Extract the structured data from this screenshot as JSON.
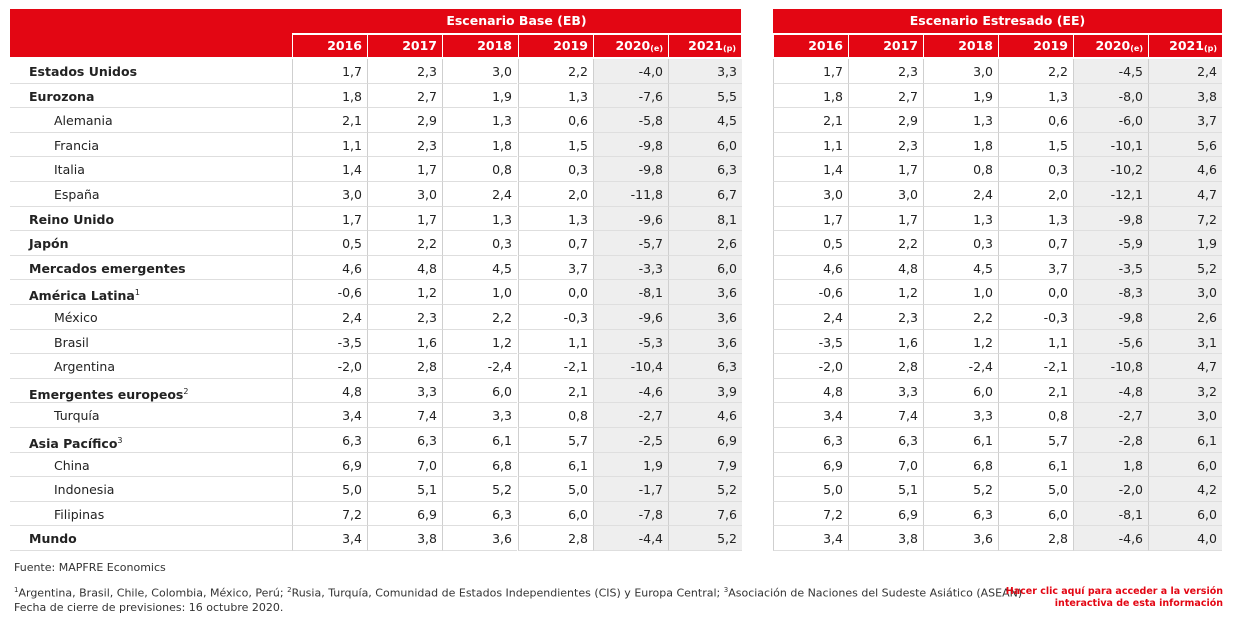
{
  "headers": {
    "base_title": "Escenario Base (EB)",
    "stress_title": "Escenario Estresado (EE)",
    "years": [
      {
        "label": "2016",
        "suffix": ""
      },
      {
        "label": "2017",
        "suffix": ""
      },
      {
        "label": "2018",
        "suffix": ""
      },
      {
        "label": "2019",
        "suffix": ""
      },
      {
        "label": "2020",
        "suffix": "(e)"
      },
      {
        "label": "2021",
        "suffix": "(p)"
      }
    ]
  },
  "rows": [
    {
      "label": "Estados Unidos",
      "note": "",
      "bold": true,
      "indent": false,
      "base": [
        "1,7",
        "2,3",
        "3,0",
        "2,2",
        "-4,0",
        "3,3"
      ],
      "stress": [
        "1,7",
        "2,3",
        "3,0",
        "2,2",
        "-4,5",
        "2,4"
      ]
    },
    {
      "label": "Eurozona",
      "note": "",
      "bold": true,
      "indent": false,
      "base": [
        "1,8",
        "2,7",
        "1,9",
        "1,3",
        "-7,6",
        "5,5"
      ],
      "stress": [
        "1,8",
        "2,7",
        "1,9",
        "1,3",
        "-8,0",
        "3,8"
      ]
    },
    {
      "label": "Alemania",
      "note": "",
      "bold": false,
      "indent": true,
      "base": [
        "2,1",
        "2,9",
        "1,3",
        "0,6",
        "-5,8",
        "4,5"
      ],
      "stress": [
        "2,1",
        "2,9",
        "1,3",
        "0,6",
        "-6,0",
        "3,7"
      ]
    },
    {
      "label": "Francia",
      "note": "",
      "bold": false,
      "indent": true,
      "base": [
        "1,1",
        "2,3",
        "1,8",
        "1,5",
        "-9,8",
        "6,0"
      ],
      "stress": [
        "1,1",
        "2,3",
        "1,8",
        "1,5",
        "-10,1",
        "5,6"
      ]
    },
    {
      "label": "Italia",
      "note": "",
      "bold": false,
      "indent": true,
      "base": [
        "1,4",
        "1,7",
        "0,8",
        "0,3",
        "-9,8",
        "6,3"
      ],
      "stress": [
        "1,4",
        "1,7",
        "0,8",
        "0,3",
        "-10,2",
        "4,6"
      ]
    },
    {
      "label": "España",
      "note": "",
      "bold": false,
      "indent": true,
      "base": [
        "3,0",
        "3,0",
        "2,4",
        "2,0",
        "-11,8",
        "6,7"
      ],
      "stress": [
        "3,0",
        "3,0",
        "2,4",
        "2,0",
        "-12,1",
        "4,7"
      ]
    },
    {
      "label": "Reino Unido",
      "note": "",
      "bold": true,
      "indent": false,
      "base": [
        "1,7",
        "1,7",
        "1,3",
        "1,3",
        "-9,6",
        "8,1"
      ],
      "stress": [
        "1,7",
        "1,7",
        "1,3",
        "1,3",
        "-9,8",
        "7,2"
      ]
    },
    {
      "label": "Japón",
      "note": "",
      "bold": true,
      "indent": false,
      "base": [
        "0,5",
        "2,2",
        "0,3",
        "0,7",
        "-5,7",
        "2,6"
      ],
      "stress": [
        "0,5",
        "2,2",
        "0,3",
        "0,7",
        "-5,9",
        "1,9"
      ]
    },
    {
      "label": "Mercados emergentes",
      "note": "",
      "bold": true,
      "indent": false,
      "base": [
        "4,6",
        "4,8",
        "4,5",
        "3,7",
        "-3,3",
        "6,0"
      ],
      "stress": [
        "4,6",
        "4,8",
        "4,5",
        "3,7",
        "-3,5",
        "5,2"
      ]
    },
    {
      "label": "América Latina",
      "note": "1",
      "bold": true,
      "indent": false,
      "base": [
        "-0,6",
        "1,2",
        "1,0",
        "0,0",
        "-8,1",
        "3,6"
      ],
      "stress": [
        "-0,6",
        "1,2",
        "1,0",
        "0,0",
        "-8,3",
        "3,0"
      ]
    },
    {
      "label": "México",
      "note": "",
      "bold": false,
      "indent": true,
      "base": [
        "2,4",
        "2,3",
        "2,2",
        "-0,3",
        "-9,6",
        "3,6"
      ],
      "stress": [
        "2,4",
        "2,3",
        "2,2",
        "-0,3",
        "-9,8",
        "2,6"
      ]
    },
    {
      "label": "Brasil",
      "note": "",
      "bold": false,
      "indent": true,
      "base": [
        "-3,5",
        "1,6",
        "1,2",
        "1,1",
        "-5,3",
        "3,6"
      ],
      "stress": [
        "-3,5",
        "1,6",
        "1,2",
        "1,1",
        "-5,6",
        "3,1"
      ]
    },
    {
      "label": "Argentina",
      "note": "",
      "bold": false,
      "indent": true,
      "base": [
        "-2,0",
        "2,8",
        "-2,4",
        "-2,1",
        "-10,4",
        "6,3"
      ],
      "stress": [
        "-2,0",
        "2,8",
        "-2,4",
        "-2,1",
        "-10,8",
        "4,7"
      ]
    },
    {
      "label": "Emergentes europeos",
      "note": "2",
      "bold": true,
      "indent": false,
      "base": [
        "4,8",
        "3,3",
        "6,0",
        "2,1",
        "-4,6",
        "3,9"
      ],
      "stress": [
        "4,8",
        "3,3",
        "6,0",
        "2,1",
        "-4,8",
        "3,2"
      ]
    },
    {
      "label": "Turquía",
      "note": "",
      "bold": false,
      "indent": true,
      "base": [
        "3,4",
        "7,4",
        "3,3",
        "0,8",
        "-2,7",
        "4,6"
      ],
      "stress": [
        "3,4",
        "7,4",
        "3,3",
        "0,8",
        "-2,7",
        "3,0"
      ]
    },
    {
      "label": "Asia Pacífico",
      "note": "3",
      "bold": true,
      "indent": false,
      "base": [
        "6,3",
        "6,3",
        "6,1",
        "5,7",
        "-2,5",
        "6,9"
      ],
      "stress": [
        "6,3",
        "6,3",
        "6,1",
        "5,7",
        "-2,8",
        "6,1"
      ]
    },
    {
      "label": "China",
      "note": "",
      "bold": false,
      "indent": true,
      "base": [
        "6,9",
        "7,0",
        "6,8",
        "6,1",
        "1,9",
        "7,9"
      ],
      "stress": [
        "6,9",
        "7,0",
        "6,8",
        "6,1",
        "1,8",
        "6,0"
      ]
    },
    {
      "label": "Indonesia",
      "note": "",
      "bold": false,
      "indent": true,
      "base": [
        "5,0",
        "5,1",
        "5,2",
        "5,0",
        "-1,7",
        "5,2"
      ],
      "stress": [
        "5,0",
        "5,1",
        "5,2",
        "5,0",
        "-2,0",
        "4,2"
      ]
    },
    {
      "label": "Filipinas",
      "note": "",
      "bold": false,
      "indent": true,
      "base": [
        "7,2",
        "6,9",
        "6,3",
        "6,0",
        "-7,8",
        "7,6"
      ],
      "stress": [
        "7,2",
        "6,9",
        "6,3",
        "6,0",
        "-8,1",
        "6,0"
      ]
    },
    {
      "label": "Mundo",
      "note": "",
      "bold": true,
      "indent": false,
      "base": [
        "3,4",
        "3,8",
        "3,6",
        "2,8",
        "-4,4",
        "5,2"
      ],
      "stress": [
        "3,4",
        "3,8",
        "3,6",
        "2,8",
        "-4,6",
        "4,0"
      ]
    }
  ],
  "footer": {
    "source": "Fuente: MAPFRE Economics",
    "notes": [
      {
        "mark": "1",
        "text": "Argentina, Brasil, Chile, Colombia, México, Perú; "
      },
      {
        "mark": "2",
        "text": "Rusia, Turquía, Comunidad de Estados Independientes (CIS) y Europa Central; "
      },
      {
        "mark": "3",
        "text": "Asociación de Naciones del Sudeste Asiático (ASEAN)"
      }
    ],
    "closing_date": "Fecha de cierre de previsiones: 16 octubre 2020.",
    "link_line1": "Hacer clic aquí para acceder a la versión",
    "link_line2": "interactiva de esta información"
  },
  "colors": {
    "header_red": "#e30613",
    "shaded_cell": "#eeeeee",
    "link_red": "#e30613"
  }
}
